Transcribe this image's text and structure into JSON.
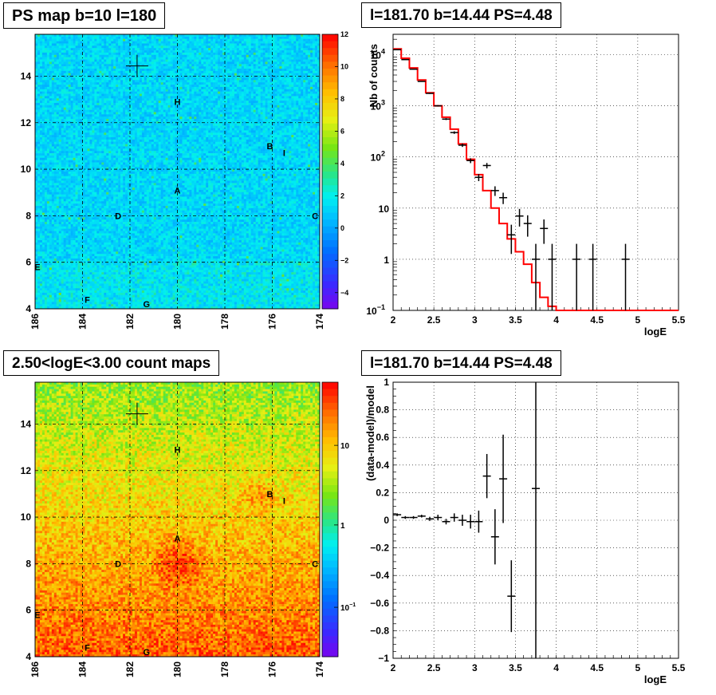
{
  "panels": {
    "tl_title": "PS map b=10 l=180",
    "tr_title": "l=181.70 b=14.44 PS=4.48",
    "bl_title": "2.50<logE<3.00 count maps",
    "br_title": "l=181.70 b=14.44 PS=4.48"
  },
  "chart_data": [
    {
      "type": "heatmap",
      "title": "PS map b=10 l=180",
      "xticks": [
        "186",
        "184",
        "182",
        "180",
        "178",
        "176",
        "174"
      ],
      "yticks": [
        "4",
        "6",
        "8",
        "10",
        "12",
        "14"
      ],
      "xlim": [
        186,
        174
      ],
      "ylim": [
        4,
        15.8
      ],
      "colorbar_ticks": [
        "12",
        "10",
        "8",
        "6",
        "4",
        "2",
        "0",
        "−2",
        "−4"
      ],
      "colorbar_range": [
        -5,
        12
      ],
      "marker": {
        "l": 181.7,
        "b": 14.44
      },
      "sources": [
        {
          "name": "A",
          "l": 180.0,
          "b": 9.1
        },
        {
          "name": "B",
          "l": 176.1,
          "b": 11.0
        },
        {
          "name": "I",
          "l": 175.5,
          "b": 10.7
        },
        {
          "name": "C",
          "l": 174.2,
          "b": 8.0
        },
        {
          "name": "D",
          "l": 182.5,
          "b": 8.0
        },
        {
          "name": "E",
          "l": 185.9,
          "b": 5.8
        },
        {
          "name": "F",
          "l": 183.8,
          "b": 4.4
        },
        {
          "name": "G",
          "l": 181.3,
          "b": 4.2
        },
        {
          "name": "H",
          "l": 180.0,
          "b": 12.9
        }
      ]
    },
    {
      "type": "line",
      "title": "l=181.70 b=14.44 PS=4.48",
      "xlabel": "logE",
      "ylabel": "Nb of counts",
      "xlim": [
        2,
        5.5
      ],
      "ylim": [
        0.1,
        25000
      ],
      "yscale": "log",
      "grid": true,
      "xticks": [
        "2",
        "2.5",
        "3",
        "3.5",
        "4",
        "4.5",
        "5",
        "5.5"
      ],
      "yticks": [
        "10^{-1}",
        "1",
        "10",
        "10^{2}",
        "10^{3}",
        "10^{4}"
      ],
      "model": {
        "edges": [
          2.0,
          2.1,
          2.2,
          2.3,
          2.4,
          2.5,
          2.6,
          2.7,
          2.8,
          2.9,
          3.0,
          3.1,
          3.2,
          3.3,
          3.4,
          3.5,
          3.6,
          3.7,
          3.8,
          3.9,
          4.0,
          5.5
        ],
        "values": [
          13000,
          8500,
          5500,
          3200,
          1800,
          1000,
          600,
          350,
          180,
          90,
          45,
          22,
          10,
          5,
          2.5,
          1.4,
          0.8,
          0.35,
          0.18,
          0.12,
          0.1
        ]
      },
      "data": [
        {
          "x": 2.05,
          "y": 12500
        },
        {
          "x": 2.15,
          "y": 8000
        },
        {
          "x": 2.25,
          "y": 5200
        },
        {
          "x": 2.35,
          "y": 3000
        },
        {
          "x": 2.45,
          "y": 1750
        },
        {
          "x": 2.55,
          "y": 1000
        },
        {
          "x": 2.65,
          "y": 550
        },
        {
          "x": 2.75,
          "y": 300
        },
        {
          "x": 2.85,
          "y": 170
        },
        {
          "x": 2.95,
          "y": 85
        },
        {
          "x": 3.05,
          "y": 40
        },
        {
          "x": 3.15,
          "y": 68
        },
        {
          "x": 3.25,
          "y": 22
        },
        {
          "x": 3.35,
          "y": 16
        },
        {
          "x": 3.45,
          "y": 3
        },
        {
          "x": 3.55,
          "y": 7
        },
        {
          "x": 3.65,
          "y": 5
        },
        {
          "x": 3.75,
          "y": 1
        },
        {
          "x": 3.85,
          "y": 4
        },
        {
          "x": 3.95,
          "y": 1
        },
        {
          "x": 4.25,
          "y": 1
        },
        {
          "x": 4.45,
          "y": 1
        },
        {
          "x": 4.85,
          "y": 1
        }
      ]
    },
    {
      "type": "heatmap",
      "title": "2.50<logE<3.00 count maps",
      "xticks": [
        "186",
        "184",
        "182",
        "180",
        "178",
        "176",
        "174"
      ],
      "yticks": [
        "4",
        "6",
        "8",
        "10",
        "12",
        "14"
      ],
      "xlim": [
        186,
        174
      ],
      "ylim": [
        4,
        15.8
      ],
      "colorscale": "log",
      "colorbar_ticks": [
        "10",
        "1",
        "10^{-1}"
      ],
      "marker": {
        "l": 181.7,
        "b": 14.44
      },
      "sources": [
        {
          "name": "A",
          "l": 180.0,
          "b": 9.1
        },
        {
          "name": "B",
          "l": 176.1,
          "b": 11.0
        },
        {
          "name": "I",
          "l": 175.5,
          "b": 10.7
        },
        {
          "name": "C",
          "l": 174.2,
          "b": 8.0
        },
        {
          "name": "D",
          "l": 182.5,
          "b": 8.0
        },
        {
          "name": "E",
          "l": 185.9,
          "b": 5.8
        },
        {
          "name": "F",
          "l": 183.8,
          "b": 4.4
        },
        {
          "name": "G",
          "l": 181.3,
          "b": 4.2
        },
        {
          "name": "H",
          "l": 180.0,
          "b": 12.9
        }
      ]
    },
    {
      "type": "scatter",
      "title": "l=181.70 b=14.44 PS=4.48",
      "xlabel": "logE",
      "ylabel": "(data-model)/model",
      "xlim": [
        2,
        5.5
      ],
      "ylim": [
        -1,
        1
      ],
      "grid": true,
      "xticks": [
        "2",
        "2.5",
        "3",
        "3.5",
        "4",
        "4.5",
        "5",
        "5.5"
      ],
      "yticks": [
        "−1",
        "−0.8",
        "−0.6",
        "−0.4",
        "−0.2",
        "0",
        "0.2",
        "0.4",
        "0.6",
        "0.8",
        "1"
      ],
      "points": [
        {
          "x": 2.05,
          "y": 0.04,
          "err": 0.01
        },
        {
          "x": 2.15,
          "y": 0.02,
          "err": 0.01
        },
        {
          "x": 2.25,
          "y": 0.02,
          "err": 0.01
        },
        {
          "x": 2.35,
          "y": 0.03,
          "err": 0.01
        },
        {
          "x": 2.45,
          "y": 0.01,
          "err": 0.015
        },
        {
          "x": 2.55,
          "y": 0.02,
          "err": 0.02
        },
        {
          "x": 2.65,
          "y": -0.01,
          "err": 0.02
        },
        {
          "x": 2.75,
          "y": 0.02,
          "err": 0.03
        },
        {
          "x": 2.85,
          "y": 0.0,
          "err": 0.04
        },
        {
          "x": 2.95,
          "y": -0.01,
          "err": 0.05
        },
        {
          "x": 3.05,
          "y": -0.01,
          "err": 0.08
        },
        {
          "x": 3.15,
          "y": 0.32,
          "err": 0.16
        },
        {
          "x": 3.25,
          "y": -0.12,
          "err": 0.2
        },
        {
          "x": 3.35,
          "y": 0.3,
          "err": 0.32
        },
        {
          "x": 3.45,
          "y": -0.55,
          "err": 0.26
        },
        {
          "x": 3.75,
          "y": 0.23,
          "err": 1.3
        }
      ]
    }
  ]
}
